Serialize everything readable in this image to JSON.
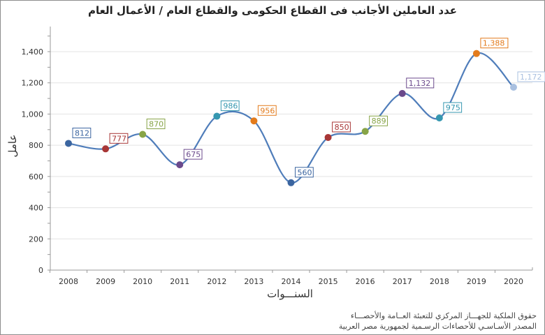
{
  "chart_data": {
    "type": "line",
    "title": "عدد  العاملين الأجانب فى القطاع الحكومى والقطاع العام / الأعمال العام",
    "xlabel": "السنـــوات",
    "ylabel": "عامل",
    "categories": [
      "2008",
      "2009",
      "2010",
      "2011",
      "2012",
      "2013",
      "2014",
      "2015",
      "2016",
      "2017",
      "2018",
      "2019",
      "2020"
    ],
    "values": [
      812,
      777,
      870,
      675,
      986,
      956,
      560,
      850,
      889,
      1132,
      975,
      1388,
      1172
    ],
    "data_labels": [
      "812",
      "777",
      "870",
      "675",
      "986",
      "956",
      "560",
      "850",
      "889",
      "1,132",
      "975",
      "1,388",
      "1,172"
    ],
    "point_colors": [
      "#3b65a0",
      "#a83636",
      "#87a447",
      "#6b4a8c",
      "#3597b0",
      "#e37b1c",
      "#3b65a0",
      "#a83636",
      "#87a447",
      "#6b4a8c",
      "#3597b0",
      "#e37b1c",
      "#a9c0e0"
    ],
    "line_color": "#4f7dba",
    "ylim": [
      0,
      1550
    ],
    "yticks": [
      0,
      200,
      400,
      600,
      800,
      1000,
      1200,
      1400
    ],
    "ytick_labels": [
      "0",
      "200",
      "400",
      "600",
      "800",
      "1,000",
      "1,200",
      "1,400"
    ],
    "grid": true,
    "smooth": true
  },
  "footer": {
    "line1": "حقوق الملكية للجهـــاز المركزي للتعبئة العــامة والأحصـــاء",
    "line2": "المصدر الأسـاسـي للأحصاءات الرسـمية لجمهورية مصر العربية"
  }
}
